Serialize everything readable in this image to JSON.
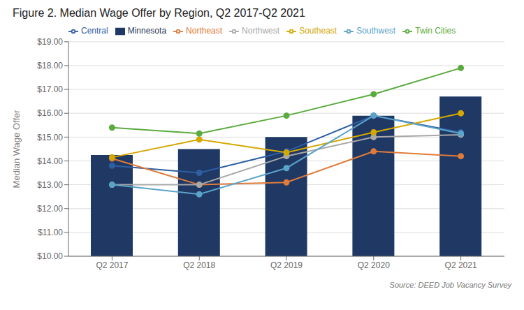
{
  "chart_data": {
    "type": "bar",
    "title": "Figure 2. Median Wage Offer by Region, Q2 2017-Q2 2021",
    "ylabel": "Median Wage Offer",
    "annotations": [
      "Source: DEED Job Vacancy Survey"
    ],
    "categories": [
      "Q2 2017",
      "Q2 2018",
      "Q2 2019",
      "Q2 2020",
      "Q2 2021"
    ],
    "series": [
      {
        "name": "Minnesota",
        "type": "bar",
        "color": "#1F3864",
        "values": [
          14.25,
          14.5,
          15.0,
          15.9,
          16.7
        ]
      },
      {
        "name": "Central",
        "type": "line",
        "color": "#2E5FA3",
        "marker": "circle",
        "values": [
          13.8,
          13.5,
          14.4,
          15.9,
          15.2
        ]
      },
      {
        "name": "Northeast",
        "type": "line",
        "color": "#E07B3A",
        "marker": "circle",
        "values": [
          14.1,
          13.0,
          13.1,
          14.4,
          14.2
        ]
      },
      {
        "name": "Northwest",
        "type": "line",
        "color": "#A8A8A8",
        "marker": "circle",
        "values": [
          13.0,
          13.0,
          14.2,
          15.0,
          15.1
        ]
      },
      {
        "name": "Southeast",
        "type": "line",
        "color": "#D4A800",
        "marker": "circle",
        "values": [
          14.15,
          14.9,
          14.35,
          15.2,
          16.0
        ]
      },
      {
        "name": "Southwest",
        "type": "line",
        "color": "#5BA3C9",
        "marker": "circle",
        "values": [
          13.0,
          12.6,
          13.7,
          15.9,
          15.15
        ]
      },
      {
        "name": "Twin Cities",
        "type": "line",
        "color": "#5AAB3E",
        "marker": "circle",
        "values": [
          15.4,
          15.15,
          15.9,
          16.8,
          17.9
        ]
      }
    ],
    "ylim": [
      10.0,
      19.0
    ],
    "yticks": [
      {
        "value": 10.0,
        "label": "$10.00"
      },
      {
        "value": 11.0,
        "label": "$11.00"
      },
      {
        "value": 12.0,
        "label": "$12.00"
      },
      {
        "value": 13.0,
        "label": "$13.00"
      },
      {
        "value": 14.0,
        "label": "$14.00"
      },
      {
        "value": 15.0,
        "label": "$15.00"
      },
      {
        "value": 16.0,
        "label": "$16.00"
      },
      {
        "value": 17.0,
        "label": "$17.00"
      },
      {
        "value": 18.0,
        "label": "$18.00"
      },
      {
        "value": 19.0,
        "label": "$19.00"
      }
    ],
    "grid": true,
    "legend": "upper left"
  }
}
